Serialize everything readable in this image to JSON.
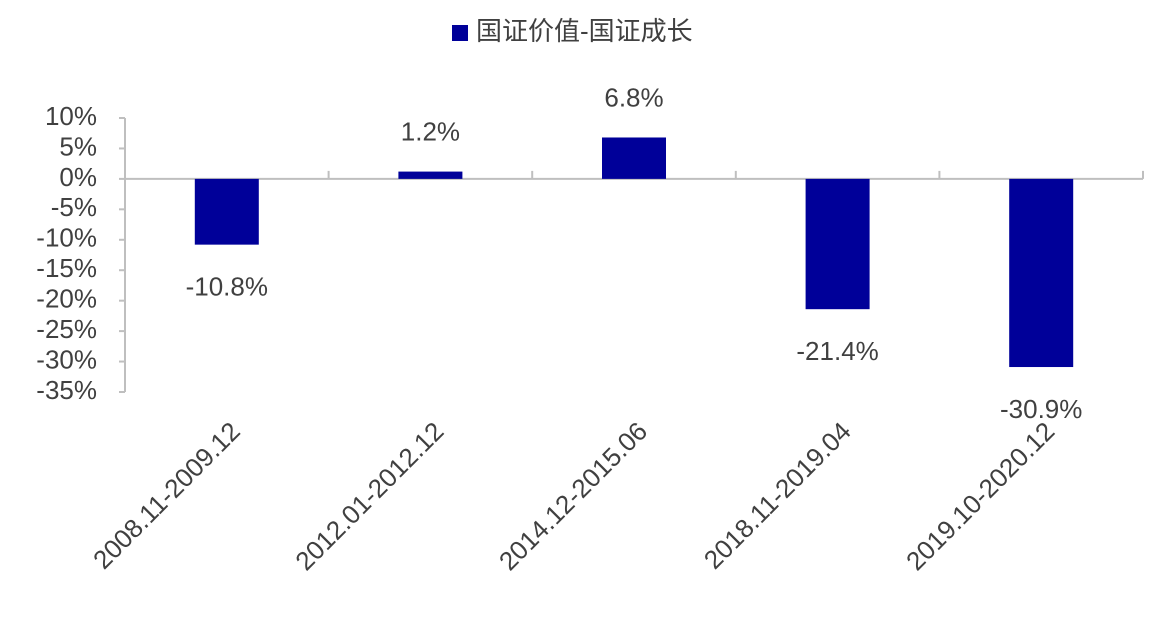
{
  "chart_data": {
    "type": "bar",
    "categories": [
      "2008.11-2009.12",
      "2012.01-2012.12",
      "2014.12-2015.06",
      "2018.11-2019.04",
      "2019.10-2020.12"
    ],
    "series": [
      {
        "name": "国证价值-国证成长",
        "color": "#000099",
        "values": [
          -10.8,
          1.2,
          6.8,
          -21.4,
          -30.9
        ],
        "value_labels": [
          "-10.8%",
          "1.2%",
          "6.8%",
          "-21.4%",
          "-30.9%"
        ]
      }
    ],
    "ylim": [
      -35,
      10
    ],
    "yticks": [
      {
        "value": 10,
        "label": "10%"
      },
      {
        "value": 5,
        "label": "5%"
      },
      {
        "value": 0,
        "label": "0%"
      },
      {
        "value": -5,
        "label": "-5%"
      },
      {
        "value": -10,
        "label": "-10%"
      },
      {
        "value": -15,
        "label": "-15%"
      },
      {
        "value": -20,
        "label": "-20%"
      },
      {
        "value": -25,
        "label": "-25%"
      },
      {
        "value": -30,
        "label": "-30%"
      },
      {
        "value": -35,
        "label": "-35%"
      }
    ],
    "legend": "top"
  }
}
